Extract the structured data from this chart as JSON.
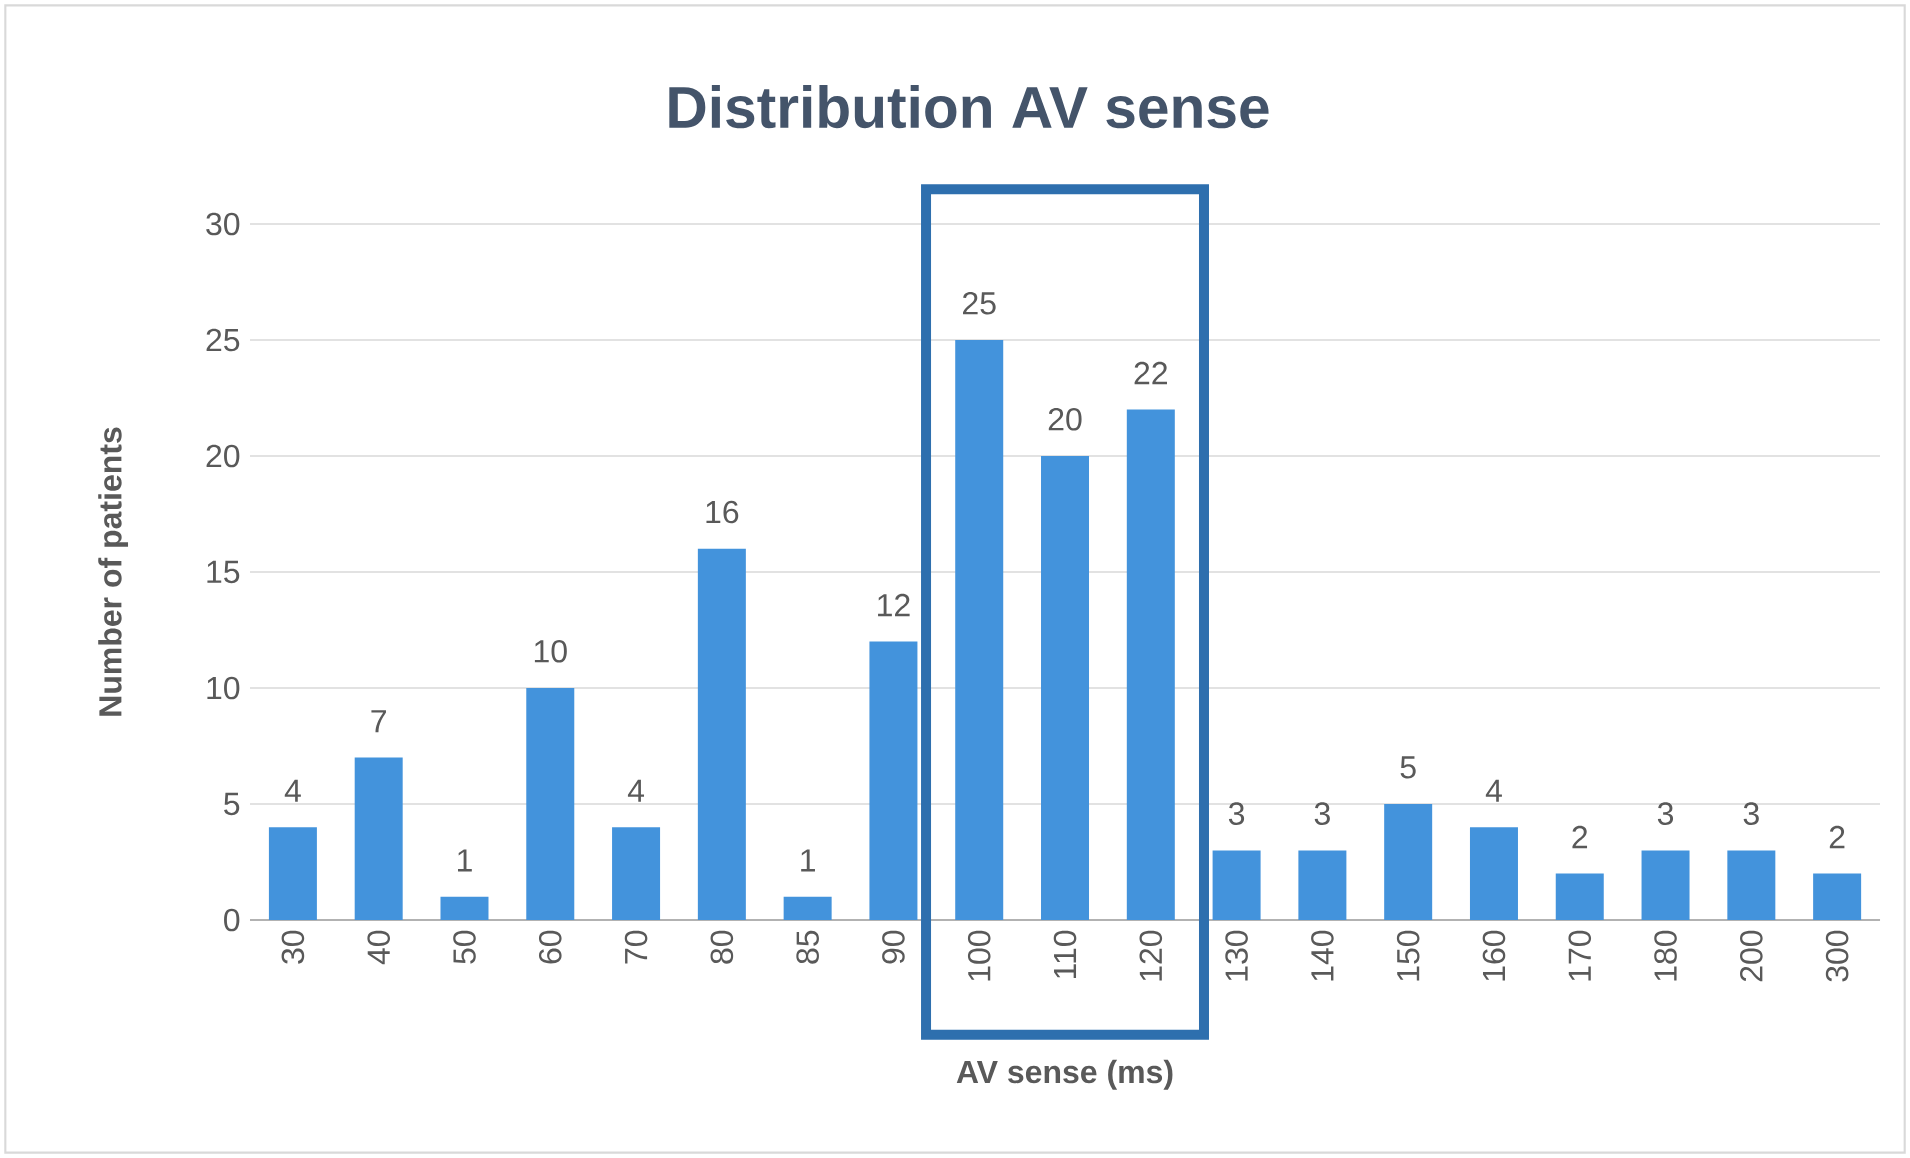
{
  "chart_data": {
    "type": "bar",
    "title": "Distribution AV sense",
    "xlabel": "AV sense (ms)",
    "ylabel": "Number of patients",
    "categories": [
      "30",
      "40",
      "50",
      "60",
      "70",
      "80",
      "85",
      "90",
      "100",
      "110",
      "120",
      "130",
      "140",
      "150",
      "160",
      "170",
      "180",
      "200",
      "300"
    ],
    "values": [
      4,
      7,
      1,
      10,
      4,
      16,
      1,
      12,
      25,
      20,
      22,
      3,
      3,
      5,
      4,
      2,
      3,
      3,
      2
    ],
    "color": "#4393dc",
    "ylim": [
      0,
      30
    ],
    "yticks": [
      0,
      5,
      10,
      15,
      20,
      25,
      30
    ],
    "grid": "y",
    "data_labels": true
  }
}
